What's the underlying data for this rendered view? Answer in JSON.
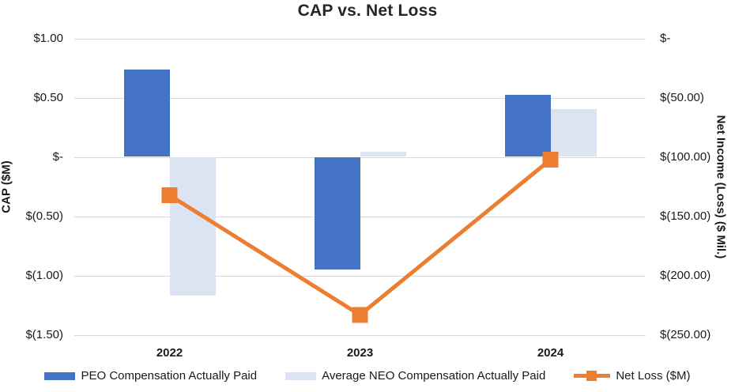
{
  "chart_data": {
    "type": "bar+line combo",
    "title": "CAP vs. Net Loss",
    "categories": [
      "2022",
      "2023",
      "2024"
    ],
    "series": [
      {
        "name": "PEO Compensation Actually Paid",
        "type": "bar",
        "axis": "left",
        "color": "#4472C4",
        "values": [
          0.74,
          -0.95,
          0.53
        ]
      },
      {
        "name": "Average NEO Compensation Actually Paid",
        "type": "bar",
        "axis": "left",
        "color": "#DCE4F3",
        "values": [
          -1.17,
          0.05,
          0.41
        ]
      },
      {
        "name": "Net Loss ($M)",
        "type": "line",
        "axis": "right",
        "color": "#ED7D31",
        "marker": "square",
        "values": [
          -132,
          -233,
          -102
        ]
      }
    ],
    "left_axis": {
      "title": "CAP ($M)",
      "tick_labels": [
        "$1.00",
        "$0.50",
        "$-",
        "$(0.50)",
        "$(1.00)",
        "$(1.50)"
      ],
      "tick_values": [
        1.0,
        0.5,
        0,
        -0.5,
        -1.0,
        -1.5
      ],
      "range": [
        -1.5,
        1.0
      ]
    },
    "right_axis": {
      "title": "Net Income (Loss) ($ Mil.)",
      "tick_labels": [
        "$-",
        "$(50.00)",
        "$(100.00)",
        "$(150.00)",
        "$(200.00)",
        "$(250.00)"
      ],
      "tick_values": [
        0,
        -50,
        -100,
        -150,
        -200,
        -250
      ],
      "range": [
        -250,
        0
      ]
    },
    "grid": true,
    "legend_position": "bottom",
    "colors": {
      "gridline": "#d9d9d9",
      "text": "#1a1a1a",
      "title": "#262626",
      "background": "#ffffff"
    }
  }
}
